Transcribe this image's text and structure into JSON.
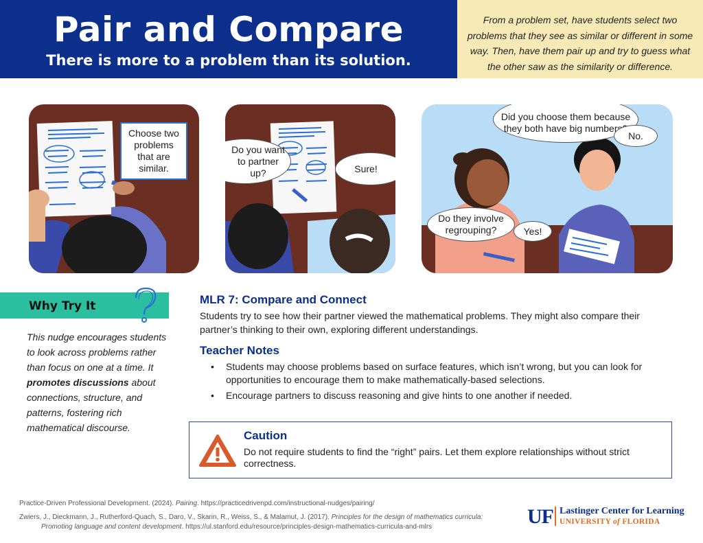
{
  "header": {
    "title": "Pair and Compare",
    "subtitle": "There is more to a problem than its solution."
  },
  "intro": "From a problem set, have students select two problems that they see as similar or different in some way. Then, have them pair up and try to guess what the other saw as the similarity or difference.",
  "panels": {
    "panel1": {
      "callout": "Choose two problems that are similar."
    },
    "panel2": {
      "bubble_left": "Do you want to partner up?",
      "bubble_right": "Sure!"
    },
    "panel3": {
      "bubble_top": "Did you choose them because they both have big numbers?",
      "bubble_no": "No.",
      "bubble_left": "Do they involve regrouping?",
      "bubble_yes": "Yes!"
    }
  },
  "why_try_it": {
    "title": "Why Try It",
    "text_before": "This nudge encourages students to look across problems rather than focus on one at a time. It ",
    "text_bold": "promotes discussions",
    "text_after": " about connections, structure, and patterns, fostering rich mathematical discourse."
  },
  "mlr": {
    "title": "MLR 7: Compare and Connect",
    "text": "Students try to see how their partner viewed the mathematical problems. They might also compare their partner’s thinking to their own, exploring different understandings."
  },
  "teacher_notes": {
    "title": "Teacher Notes",
    "items": [
      "Students may choose problems based on surface features, which isn’t wrong, but you can look for opportunities to encourage them to make mathematically-based selections.",
      "Encourage partners to discuss reasoning and give hints to one another if needed."
    ]
  },
  "caution": {
    "title": "Caution",
    "text": "Do not require students to find the “right” pairs. Let them explore relationships without strict correctness."
  },
  "references": {
    "ref1_a": "Practice-Driven Professional Development. (2024). ",
    "ref1_italic": "Pairing",
    "ref1_b": ". https://practicedrivenpd.com/instructional-nudges/pairing/",
    "ref2_a": "Zwiers, J., Dieckmann, J., Rutherford-Quach, S., Daro, V., Skarin, R., Weiss, S., & Malamut, J. (2017). ",
    "ref2_italic1": "Principles for the design of mathematics curricula:",
    "ref2_italic2": "Promoting language and content development",
    "ref2_b": ". https://ul.stanford.edu/resource/principles-design-mathematics-curricula-and-mlrs"
  },
  "logo": {
    "mark": "UF",
    "name": "Lastinger Center for Learning",
    "university_a": "UNIVERSITY ",
    "university_of": "of",
    "university_b": " FLORIDA"
  },
  "colors": {
    "header_blue": "#0b2f8a",
    "intro_yellow": "#f8eab7",
    "why_teal": "#2bbf9f",
    "caution_orange": "#d95a2b",
    "uf_orange": "#e06b1f"
  }
}
